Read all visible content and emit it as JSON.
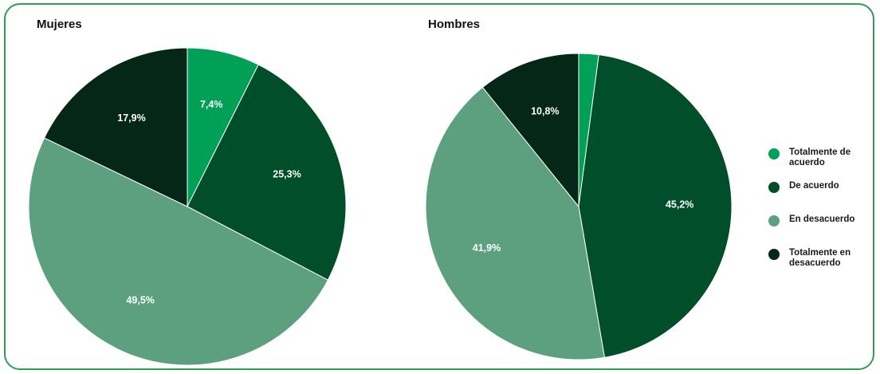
{
  "colors": {
    "border": "#2f9e52",
    "totalmente_de_acuerdo": "#00a056",
    "de_acuerdo": "#004f2a",
    "en_desacuerdo": "#5ca07f",
    "totalmente_en_desacuerdo": "#052717"
  },
  "chart_data": [
    {
      "type": "pie",
      "title": "Mujeres",
      "slices": [
        {
          "name": "Totalmente de acuerdo",
          "value": 7.4,
          "label": "7,4%",
          "color": "#00a056"
        },
        {
          "name": "De acuerdo",
          "value": 25.3,
          "label": "25,3%",
          "color": "#004f2a"
        },
        {
          "name": "En desacuerdo",
          "value": 49.5,
          "label": "49,5%",
          "color": "#5ca07f"
        },
        {
          "name": "Totalmente en desacuerdo",
          "value": 17.9,
          "label": "17,9%",
          "color": "#052717"
        }
      ],
      "start": "top",
      "direction": "clockwise"
    },
    {
      "type": "pie",
      "title": "Hombres",
      "slices": [
        {
          "name": "Totalmente de acuerdo",
          "value": 2.1,
          "label": "",
          "color": "#00a056"
        },
        {
          "name": "De acuerdo",
          "value": 45.2,
          "label": "45,2%",
          "color": "#004f2a"
        },
        {
          "name": "En desacuerdo",
          "value": 41.9,
          "label": "41,9%",
          "color": "#5ca07f"
        },
        {
          "name": "Totalmente en desacuerdo",
          "value": 10.8,
          "label": "10,8%",
          "color": "#052717"
        }
      ],
      "start": "top",
      "direction": "clockwise"
    }
  ],
  "legend": {
    "placement": "right",
    "items": [
      {
        "label": "Totalmente de acuerdo",
        "color": "#00a056"
      },
      {
        "label": "De acuerdo",
        "color": "#004f2a"
      },
      {
        "label": "En desacuerdo",
        "color": "#5ca07f"
      },
      {
        "label": "Totalmente en desacuerdo",
        "color": "#052717"
      }
    ]
  }
}
